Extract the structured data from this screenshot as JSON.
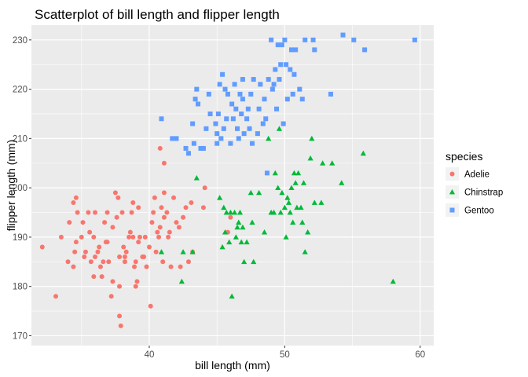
{
  "chart_data": {
    "type": "scatter",
    "title": "Scatterplot of bill length and flipper length",
    "xlabel": "bill length (mm)",
    "ylabel": "flipper length (mm)",
    "xlim": [
      31.3,
      61.0
    ],
    "ylim": [
      168.0,
      233.0
    ],
    "xticks": [
      40,
      50,
      60
    ],
    "yticks": [
      170,
      180,
      190,
      200,
      210,
      220,
      230
    ],
    "grid": true,
    "legend": {
      "title": "species",
      "position": "right"
    },
    "series": [
      {
        "name": "Adelie",
        "color": "#F8766D",
        "marker": "circle",
        "points": [
          [
            32.1,
            188
          ],
          [
            33.1,
            178
          ],
          [
            33.5,
            190
          ],
          [
            34.0,
            185
          ],
          [
            34.1,
            193
          ],
          [
            34.4,
            184
          ],
          [
            34.5,
            187
          ],
          [
            34.6,
            189
          ],
          [
            34.6,
            198
          ],
          [
            34.7,
            195
          ],
          [
            35.0,
            190
          ],
          [
            35.1,
            193
          ],
          [
            35.2,
            186
          ],
          [
            35.3,
            187
          ],
          [
            35.5,
            195
          ],
          [
            35.6,
            191
          ],
          [
            35.7,
            185
          ],
          [
            35.9,
            190
          ],
          [
            36.0,
            186
          ],
          [
            36.0,
            195
          ],
          [
            36.2,
            187
          ],
          [
            36.4,
            184
          ],
          [
            36.5,
            182
          ],
          [
            36.6,
            185
          ],
          [
            36.7,
            193
          ],
          [
            36.8,
            189
          ],
          [
            36.9,
            189
          ],
          [
            37.0,
            185
          ],
          [
            37.2,
            178
          ],
          [
            37.3,
            181
          ],
          [
            37.5,
            199
          ],
          [
            37.6,
            194
          ],
          [
            37.7,
            198
          ],
          [
            37.8,
            174
          ],
          [
            37.8,
            180
          ],
          [
            37.9,
            172
          ],
          [
            38.0,
            195
          ],
          [
            38.1,
            188
          ],
          [
            38.2,
            185
          ],
          [
            38.3,
            187
          ],
          [
            38.5,
            190
          ],
          [
            38.6,
            191
          ],
          [
            38.7,
            195
          ],
          [
            38.8,
            190
          ],
          [
            38.9,
            184
          ],
          [
            39.0,
            185
          ],
          [
            39.1,
            181
          ],
          [
            39.2,
            196
          ],
          [
            39.3,
            190
          ],
          [
            39.5,
            186
          ],
          [
            39.6,
            186
          ],
          [
            39.7,
            190
          ],
          [
            39.8,
            184
          ],
          [
            40.0,
            188
          ],
          [
            40.1,
            176
          ],
          [
            40.2,
            193
          ],
          [
            40.3,
            195
          ],
          [
            40.5,
            187
          ],
          [
            40.6,
            191
          ],
          [
            40.7,
            190
          ],
          [
            40.8,
            192
          ],
          [
            40.9,
            196
          ],
          [
            41.0,
            185
          ],
          [
            41.1,
            194
          ],
          [
            41.3,
            195
          ],
          [
            41.4,
            190
          ],
          [
            41.5,
            191
          ],
          [
            41.6,
            184
          ],
          [
            41.8,
            198
          ],
          [
            42.0,
            193
          ],
          [
            42.2,
            192
          ],
          [
            42.3,
            184
          ],
          [
            42.5,
            194
          ],
          [
            42.7,
            196
          ],
          [
            42.9,
            185
          ],
          [
            43.1,
            197
          ],
          [
            43.2,
            187
          ],
          [
            44.0,
            196
          ],
          [
            44.1,
            200
          ],
          [
            45.8,
            191
          ],
          [
            46.0,
            194
          ],
          [
            41.1,
            205
          ],
          [
            40.8,
            208
          ],
          [
            42.0,
            210
          ],
          [
            41.1,
            199
          ],
          [
            37.8,
            186
          ],
          [
            36.3,
            188
          ],
          [
            35.9,
            182
          ],
          [
            34.4,
            197
          ],
          [
            36.9,
            195
          ],
          [
            38.2,
            186
          ],
          [
            39.0,
            180
          ],
          [
            37.3,
            192
          ],
          [
            40.4,
            198
          ],
          [
            39.2,
            189
          ],
          [
            38.8,
            197
          ]
        ]
      },
      {
        "name": "Chinstrap",
        "color": "#00BA38",
        "marker": "triangle",
        "points": [
          [
            40.9,
            187
          ],
          [
            42.4,
            181
          ],
          [
            42.5,
            187
          ],
          [
            43.2,
            187
          ],
          [
            43.5,
            202
          ],
          [
            45.2,
            198
          ],
          [
            45.4,
            188
          ],
          [
            45.5,
            196
          ],
          [
            45.6,
            191
          ],
          [
            45.7,
            195
          ],
          [
            46.0,
            195
          ],
          [
            46.1,
            178
          ],
          [
            46.4,
            190
          ],
          [
            46.5,
            192
          ],
          [
            46.6,
            193
          ],
          [
            46.7,
            195
          ],
          [
            46.8,
            189
          ],
          [
            46.9,
            192
          ],
          [
            47.0,
            185
          ],
          [
            47.5,
            199
          ],
          [
            47.6,
            193
          ],
          [
            48.1,
            199
          ],
          [
            48.5,
            191
          ],
          [
            49.0,
            195
          ],
          [
            49.2,
            195
          ],
          [
            49.3,
            203
          ],
          [
            49.5,
            200
          ],
          [
            49.7,
            195
          ],
          [
            50.0,
            196
          ],
          [
            50.1,
            190
          ],
          [
            50.2,
            198
          ],
          [
            50.3,
            197
          ],
          [
            50.5,
            200
          ],
          [
            50.6,
            193
          ],
          [
            50.7,
            203
          ],
          [
            50.8,
            201
          ],
          [
            50.9,
            196
          ],
          [
            51.0,
            203
          ],
          [
            51.3,
            193
          ],
          [
            51.4,
            201
          ],
          [
            51.5,
            187
          ],
          [
            51.7,
            191
          ],
          [
            51.9,
            206
          ],
          [
            52.0,
            210
          ],
          [
            52.2,
            197
          ],
          [
            52.7,
            197
          ],
          [
            52.8,
            205
          ],
          [
            53.5,
            205
          ],
          [
            54.2,
            201
          ],
          [
            55.8,
            207
          ],
          [
            58.0,
            181
          ],
          [
            49.6,
            212
          ],
          [
            48.8,
            210
          ],
          [
            50.4,
            195
          ],
          [
            51.2,
            196
          ],
          [
            49.8,
            199
          ],
          [
            47.2,
            189
          ],
          [
            45.9,
            189
          ],
          [
            46.3,
            195
          ],
          [
            47.7,
            185
          ]
        ]
      },
      {
        "name": "Gentoo",
        "color": "#619CFF",
        "marker": "square",
        "points": [
          [
            40.9,
            214
          ],
          [
            41.7,
            210
          ],
          [
            42.0,
            210
          ],
          [
            42.7,
            208
          ],
          [
            42.9,
            207
          ],
          [
            43.2,
            213
          ],
          [
            43.3,
            209
          ],
          [
            43.4,
            218
          ],
          [
            43.5,
            220
          ],
          [
            43.6,
            217
          ],
          [
            43.8,
            208
          ],
          [
            44.0,
            208
          ],
          [
            44.4,
            219
          ],
          [
            44.5,
            215
          ],
          [
            44.9,
            213
          ],
          [
            45.0,
            211
          ],
          [
            45.1,
            215
          ],
          [
            45.2,
            221
          ],
          [
            45.3,
            210
          ],
          [
            45.4,
            223
          ],
          [
            45.5,
            212
          ],
          [
            45.7,
            214
          ],
          [
            45.8,
            219
          ],
          [
            46.1,
            217
          ],
          [
            46.2,
            214
          ],
          [
            46.3,
            221
          ],
          [
            46.4,
            216
          ],
          [
            46.5,
            212
          ],
          [
            46.6,
            210
          ],
          [
            46.7,
            219
          ],
          [
            46.8,
            215
          ],
          [
            46.9,
            222
          ],
          [
            47.3,
            216
          ],
          [
            47.4,
            212
          ],
          [
            47.5,
            219
          ],
          [
            47.6,
            209
          ],
          [
            47.7,
            222
          ],
          [
            48.1,
            216
          ],
          [
            48.2,
            221
          ],
          [
            48.4,
            213
          ],
          [
            48.5,
            218
          ],
          [
            48.6,
            214
          ],
          [
            48.7,
            203
          ],
          [
            48.8,
            222
          ],
          [
            49.0,
            230
          ],
          [
            49.1,
            220
          ],
          [
            49.2,
            221
          ],
          [
            49.3,
            224
          ],
          [
            49.4,
            216
          ],
          [
            49.5,
            229
          ],
          [
            49.6,
            222
          ],
          [
            49.8,
            229
          ],
          [
            49.9,
            213
          ],
          [
            50.0,
            230
          ],
          [
            50.1,
            225
          ],
          [
            50.2,
            218
          ],
          [
            50.4,
            224
          ],
          [
            50.5,
            228
          ],
          [
            50.7,
            223
          ],
          [
            50.8,
            228
          ],
          [
            51.1,
            220
          ],
          [
            51.3,
            218
          ],
          [
            51.5,
            230
          ],
          [
            52.1,
            230
          ],
          [
            52.2,
            228
          ],
          [
            53.4,
            219
          ],
          [
            54.3,
            231
          ],
          [
            55.1,
            230
          ],
          [
            55.9,
            228
          ],
          [
            59.6,
            230
          ],
          [
            47.2,
            214
          ],
          [
            45.6,
            220
          ],
          [
            44.2,
            212
          ],
          [
            46.0,
            209
          ],
          [
            47.0,
            211
          ],
          [
            48.0,
            211
          ],
          [
            50.6,
            219
          ],
          [
            49.7,
            225
          ],
          [
            45.0,
            209
          ],
          [
            46.9,
            218
          ]
        ]
      }
    ]
  }
}
